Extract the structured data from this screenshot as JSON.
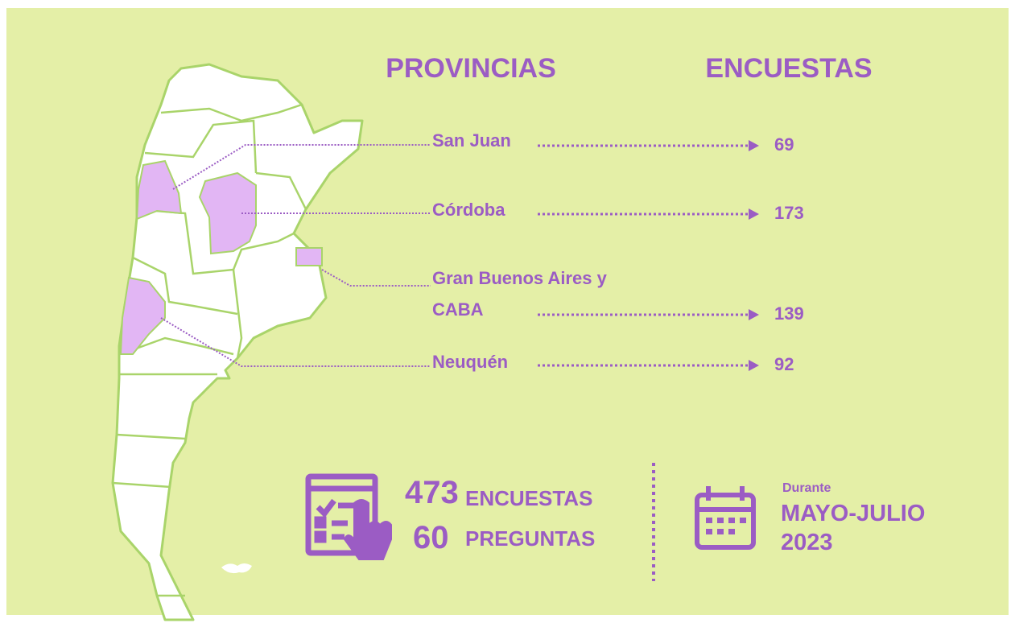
{
  "headers": {
    "provinces": "PROVINCIAS",
    "surveys": "ENCUESTAS"
  },
  "rows": [
    {
      "province": "San Juan",
      "surveys": 69
    },
    {
      "province": "Córdoba",
      "surveys": 173
    },
    {
      "province": "Gran Buenos Aires y CABA",
      "surveys": 139
    },
    {
      "province": "Neuquén",
      "surveys": 92
    }
  ],
  "summary": {
    "surveys_count": 473,
    "surveys_label": "ENCUESTAS",
    "questions_count": 60,
    "questions_label": "PREGUNTAS"
  },
  "period": {
    "prefix": "Durante",
    "months": "MAYO-JULIO",
    "year": 2023
  }
}
